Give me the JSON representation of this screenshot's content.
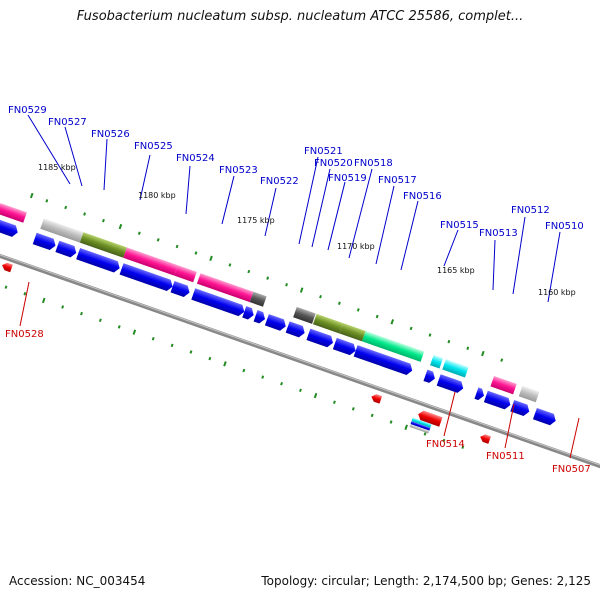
{
  "title": "Fusobacterium nucleatum subsp. nucleatum ATCC 25586, complet...",
  "accession": "Accession: NC_003454",
  "summary": "Topology: circular; Length: 2,174,500 bp; Genes: 2,125",
  "kbp_labels": [
    "1185 kbp",
    "1180 kbp",
    "1175 kbp",
    "1170 kbp",
    "1165 kbp",
    "1160 kbp"
  ],
  "forward_genes": [
    "FN0529",
    "FN0527",
    "FN0526",
    "FN0525",
    "FN0524",
    "FN0523",
    "FN0522",
    "FN0521",
    "FN0520",
    "FN0519",
    "FN0518",
    "FN0517",
    "FN0516",
    "FN0515",
    "FN0513",
    "FN0512",
    "FN0510"
  ],
  "reverse_genes": [
    "FN0528",
    "FN0514",
    "FN0511",
    "FN0507"
  ],
  "colors": {
    "forward_label": "#0000cc",
    "reverse_label": "#cc0000",
    "cds_blue": "#0000ee",
    "magenta": "#ff1493",
    "olive": "#6b8e23",
    "gray": "#bbbbbb",
    "dark_gray": "#555555",
    "green": "#00e88a",
    "cyan": "#00e5ee",
    "red": "#ee0000",
    "orange": "#ff8c00",
    "tick_green": "#228b22",
    "backbone": "#888888"
  }
}
